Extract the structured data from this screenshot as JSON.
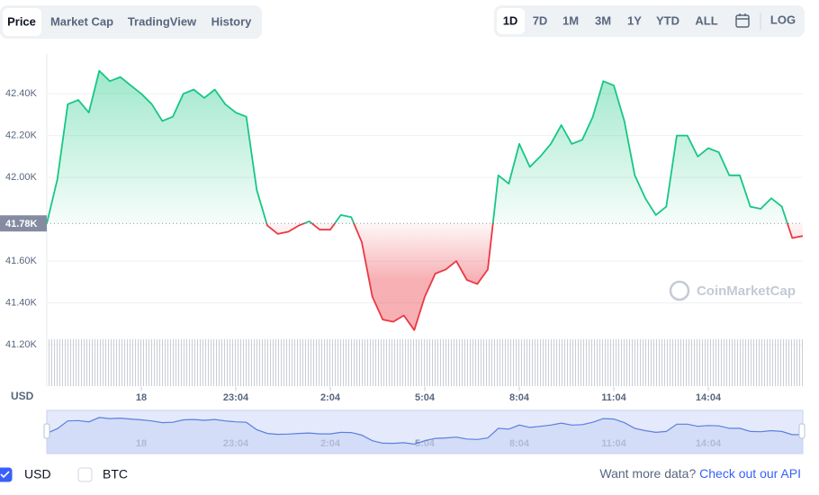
{
  "tabs": [
    "Price",
    "Market Cap",
    "TradingView",
    "History"
  ],
  "ranges": [
    "1D",
    "7D",
    "1M",
    "3M",
    "1Y",
    "YTD",
    "ALL"
  ],
  "log": "LOG",
  "chart_data": {
    "type": "line",
    "values": [
      41780,
      41990,
      42350,
      42370,
      42310,
      42510,
      42460,
      42480,
      42440,
      42400,
      42350,
      42270,
      42290,
      42400,
      42420,
      42380,
      42420,
      42350,
      42310,
      42290,
      41940,
      41770,
      41730,
      41740,
      41770,
      41790,
      41750,
      41750,
      41820,
      41810,
      41690,
      41430,
      41320,
      41310,
      41340,
      41270,
      41430,
      41540,
      41560,
      41600,
      41510,
      41490,
      41560,
      42010,
      41970,
      42160,
      42050,
      42100,
      42160,
      42250,
      42160,
      42180,
      42290,
      42460,
      42440,
      42270,
      42010,
      41900,
      41820,
      41860,
      42200,
      42200,
      42100,
      42140,
      42120,
      42010,
      42010,
      41860,
      41850,
      41900,
      41860,
      41710,
      41720
    ],
    "up_color": "#16c784",
    "down_color": "#ea3943",
    "baseline": 41780,
    "baseline_label": "41.78K",
    "ylim": [
      41000,
      42590
    ],
    "yticks": [
      {
        "value": 41200,
        "label": "41.20K"
      },
      {
        "value": 41400,
        "label": "41.40K"
      },
      {
        "value": 41600,
        "label": "41.60K"
      },
      {
        "value": 42000,
        "label": "42.00K"
      },
      {
        "value": 42200,
        "label": "42.20K"
      },
      {
        "value": 42400,
        "label": "42.40K"
      }
    ],
    "xlim": [
      0,
      72
    ],
    "xticks": [
      {
        "value": 9,
        "label": "18"
      },
      {
        "value": 18,
        "label": "23:04"
      },
      {
        "value": 27,
        "label": "2:04"
      },
      {
        "value": 36,
        "label": "5:04"
      },
      {
        "value": 45,
        "label": "8:04"
      },
      {
        "value": 54,
        "label": "11:04"
      },
      {
        "value": 63,
        "label": "14:04"
      }
    ],
    "y_axis_label": "USD",
    "watermark": "CoinMarketCap",
    "grid": true
  },
  "currencies": [
    {
      "label": "USD",
      "checked": true
    },
    {
      "label": "BTC",
      "checked": false
    }
  ],
  "footer": {
    "prompt": "Want more data?",
    "link": "Check out our API"
  }
}
